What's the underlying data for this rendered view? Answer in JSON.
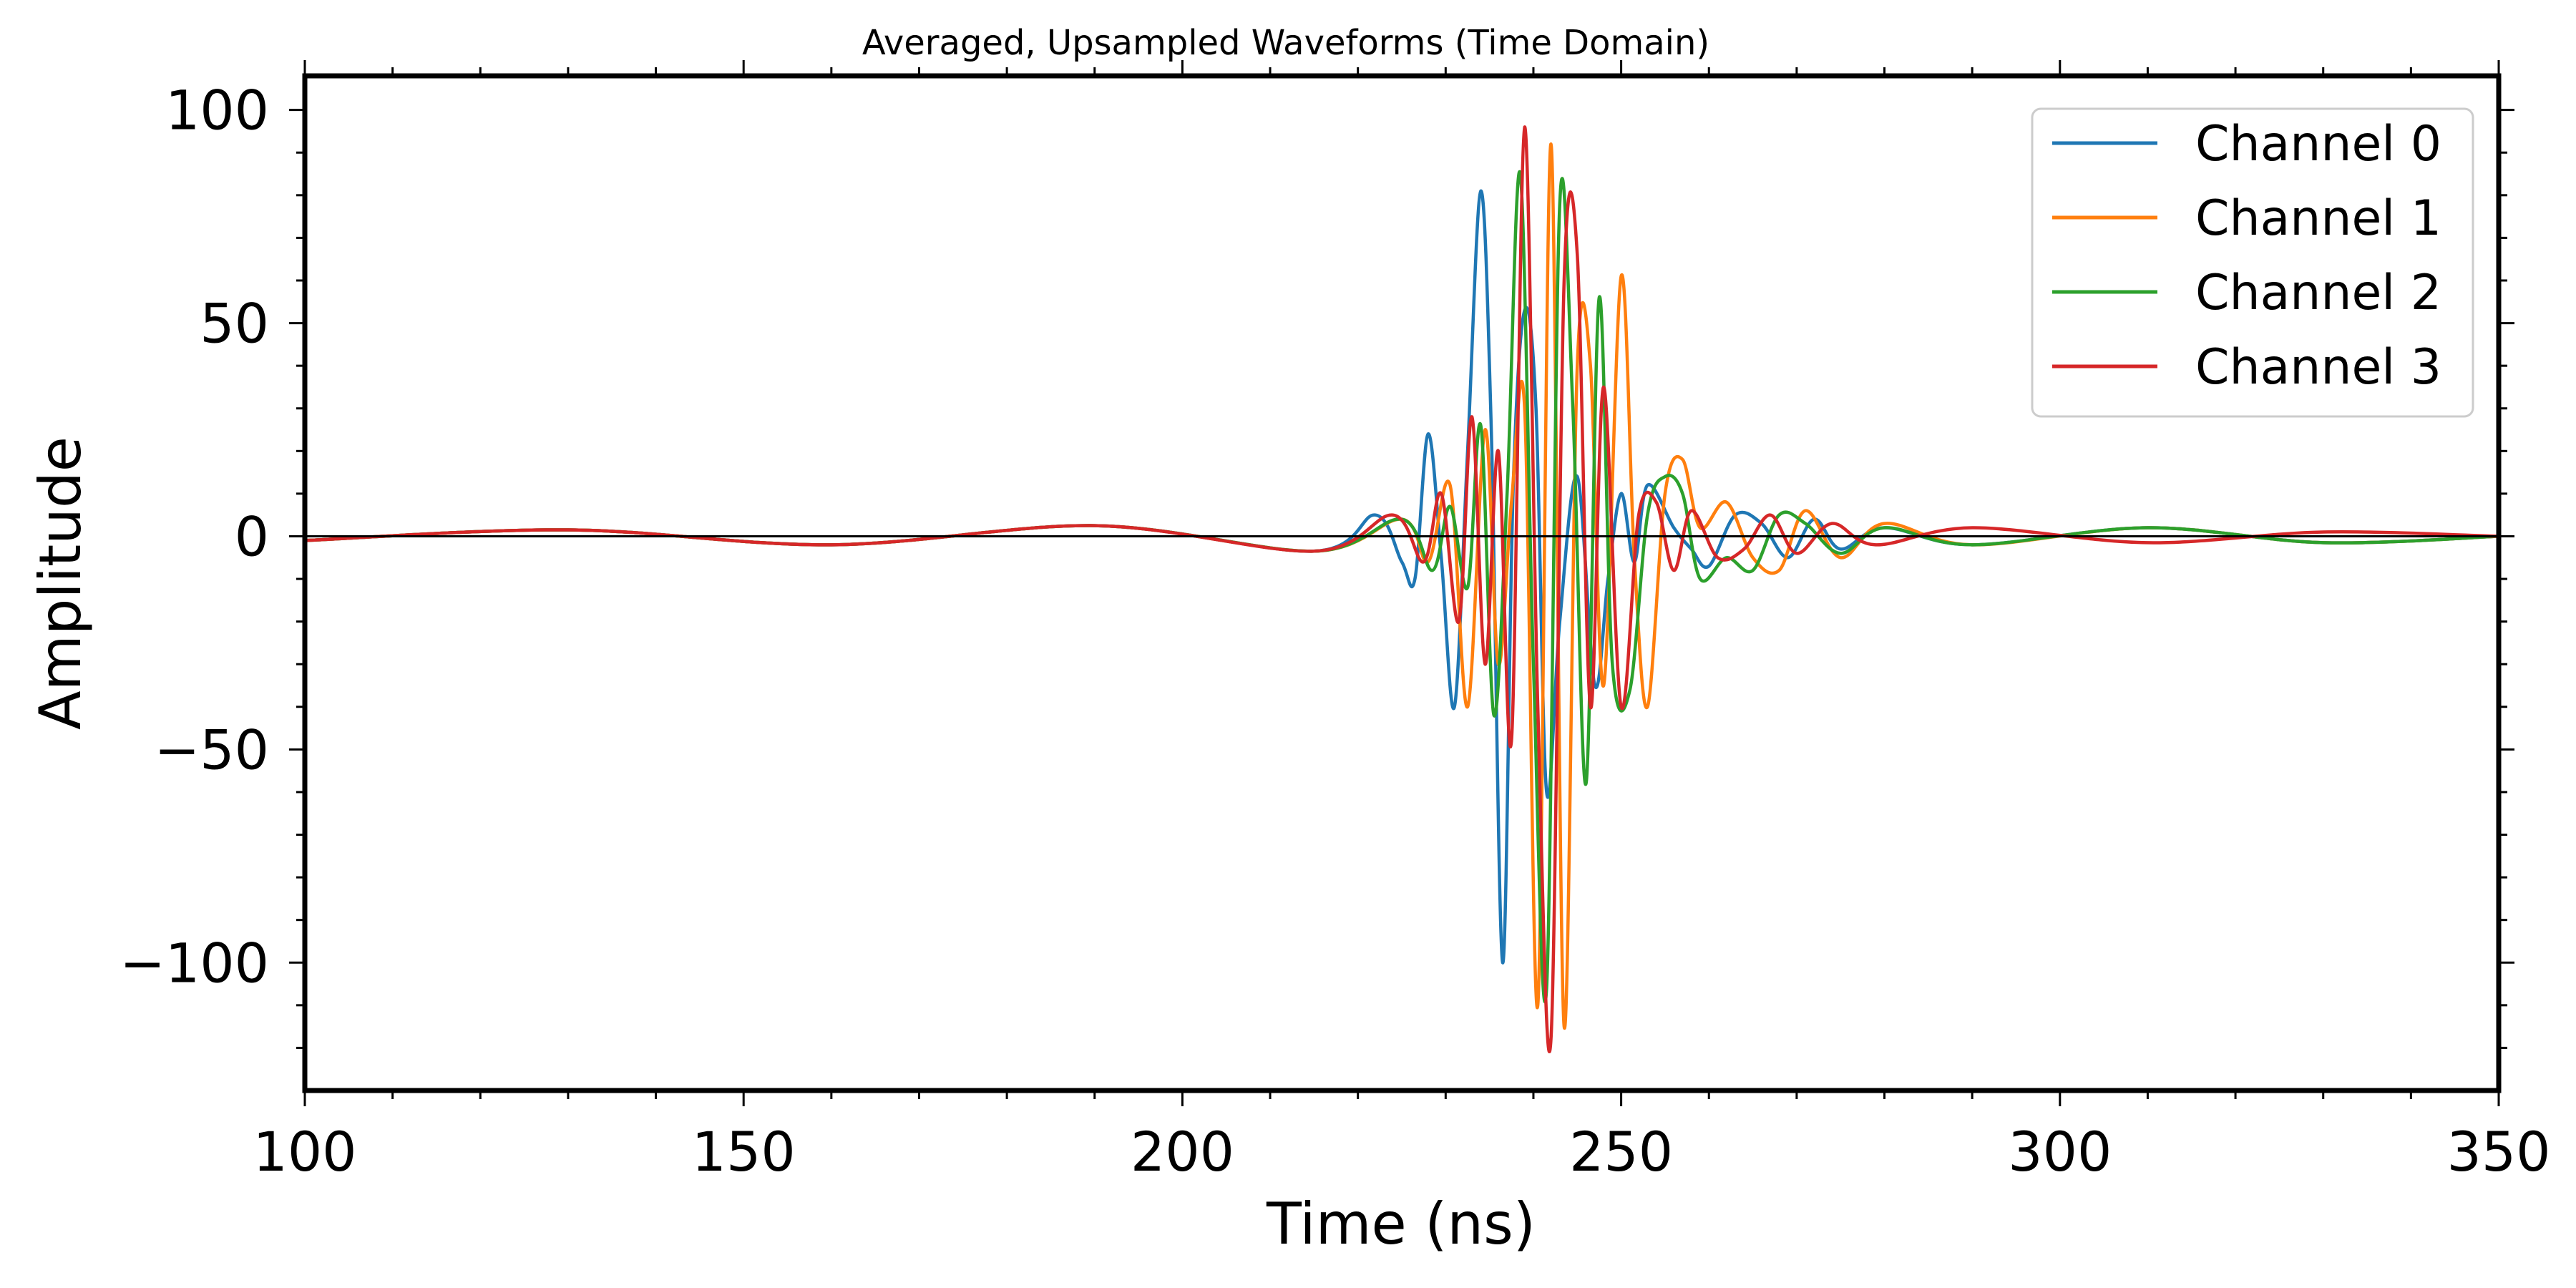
{
  "chart_data": {
    "type": "line",
    "title": "Averaged, Upsampled Waveforms (Time Domain)",
    "xlabel": "Time (ns)",
    "ylabel": "Amplitude",
    "xlim": [
      100,
      350
    ],
    "ylim": [
      -130,
      108
    ],
    "x_ticks": [
      100,
      150,
      200,
      250,
      300,
      350
    ],
    "x_tick_labels": [
      "100",
      "150",
      "200",
      "250",
      "300",
      "350"
    ],
    "y_ticks": [
      100,
      50,
      0,
      -50,
      -100
    ],
    "y_tick_labels": [
      "100",
      "50",
      "0",
      "−50",
      "−100"
    ],
    "grid": false,
    "legend_position": "top-right",
    "series": [
      {
        "name": "Channel 0",
        "color": "#1f77b4",
        "x": [
          100,
          130,
          160,
          190,
          215,
          222,
          225,
          226.5,
          228,
          229.5,
          231,
          232.5,
          234,
          235.2,
          236.5,
          237.7,
          239,
          240.3,
          241.5,
          243,
          245,
          247,
          248.5,
          250,
          251.5,
          253,
          256,
          258,
          260,
          263,
          266,
          269,
          272,
          275,
          280,
          290,
          310,
          330,
          350
        ],
        "values": [
          -1,
          1.5,
          -2,
          2.5,
          -3.5,
          5,
          -6,
          -10,
          24,
          -5,
          -40,
          20,
          81,
          25,
          -100,
          12,
          53,
          30,
          -60,
          -20,
          14,
          -35,
          -10,
          10,
          -6,
          12,
          2,
          -3,
          -7,
          5,
          3,
          -5,
          4,
          -3,
          2,
          -2,
          2,
          -1.5,
          0
        ]
      },
      {
        "name": "Channel 1",
        "color": "#ff7f0e",
        "x": [
          100,
          130,
          160,
          190,
          215,
          225,
          228,
          230.5,
          232.5,
          234.5,
          236,
          237.5,
          239,
          240.5,
          242,
          243.5,
          245,
          246.5,
          248,
          250,
          251.5,
          253,
          255,
          257,
          259,
          262,
          265,
          268,
          271,
          275,
          280,
          290,
          310,
          330,
          350
        ],
        "values": [
          -1,
          1.5,
          -2,
          2.5,
          -3.5,
          4,
          -6,
          12,
          -40,
          25,
          -30,
          8,
          30,
          -110,
          92,
          -115,
          40,
          40,
          -35,
          61,
          -5,
          -40,
          10,
          18,
          2,
          8,
          -5,
          -8,
          6,
          -5,
          3,
          -2,
          2,
          -1.5,
          0
        ]
      },
      {
        "name": "Channel 2",
        "color": "#2ca02c",
        "x": [
          100,
          130,
          160,
          190,
          215,
          225,
          228.5,
          230.5,
          232.5,
          234,
          235.5,
          237,
          238.5,
          240,
          241.5,
          243,
          244.5,
          246,
          247.5,
          249,
          251,
          253,
          255,
          257,
          259,
          262,
          265,
          268,
          271,
          275,
          280,
          290,
          310,
          330,
          350
        ],
        "values": [
          -1,
          1.5,
          -2,
          2.5,
          -3.5,
          4,
          -8,
          7,
          -12,
          26,
          -42,
          10,
          85,
          -30,
          -106,
          78,
          30,
          -58,
          56,
          -30,
          -36,
          5,
          14,
          10,
          -10,
          -5,
          -8,
          5,
          3,
          -4,
          2,
          -2,
          2,
          -1.5,
          0
        ]
      },
      {
        "name": "Channel 3",
        "color": "#d62728",
        "x": [
          100,
          130,
          160,
          190,
          215,
          224,
          227.5,
          229.5,
          231.5,
          233,
          234.5,
          236,
          237.5,
          239,
          240.5,
          242,
          243.5,
          245,
          246.5,
          248,
          250,
          252,
          254,
          256,
          258,
          261,
          264,
          267,
          270,
          274,
          279,
          290,
          310,
          330,
          350
        ],
        "values": [
          -1,
          1.5,
          -2,
          2.5,
          -3.5,
          5,
          -6,
          10,
          -20,
          28,
          -30,
          20,
          -48,
          96,
          -40,
          -118,
          60,
          66,
          -40,
          35,
          -40,
          5,
          8,
          -8,
          6,
          -5,
          -3,
          5,
          -4,
          3,
          -2,
          2,
          -1.5,
          1,
          0
        ]
      }
    ]
  }
}
